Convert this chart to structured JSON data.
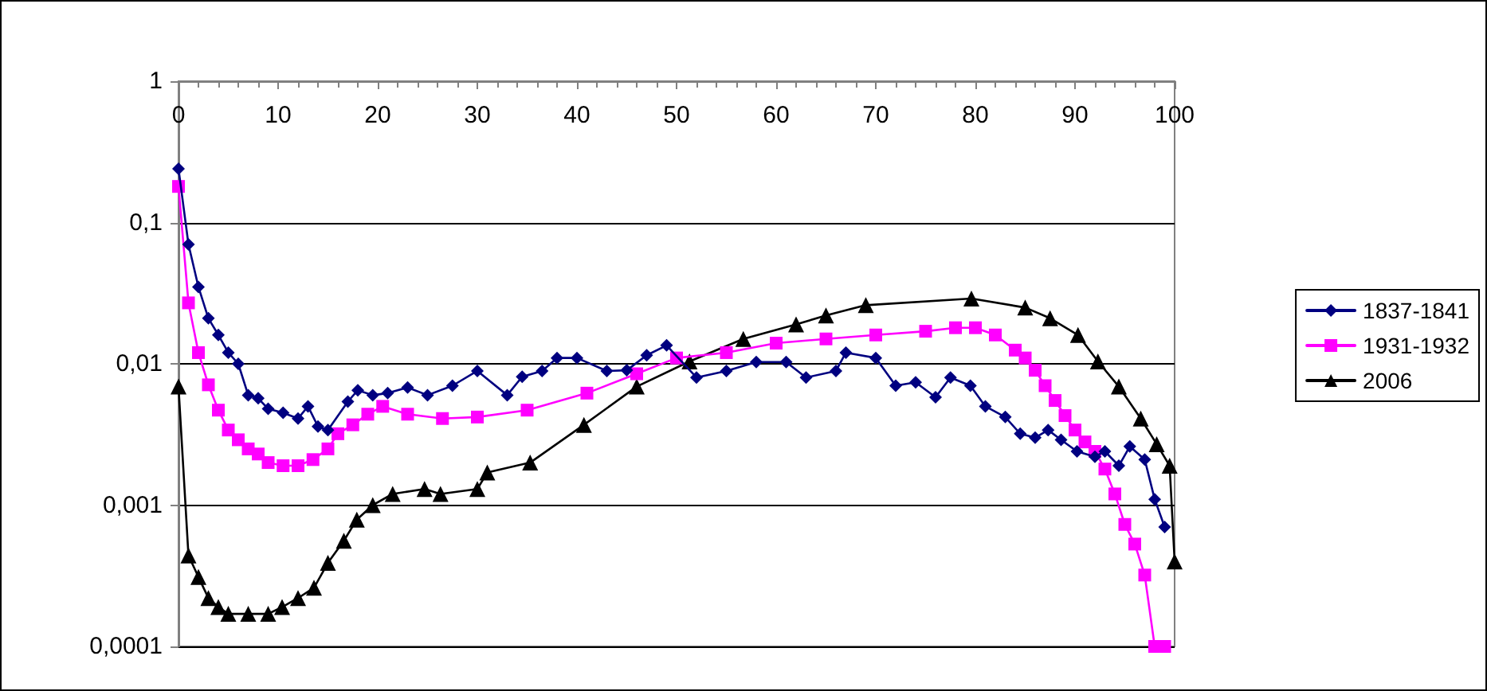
{
  "chart_data": {
    "type": "line",
    "log": "y",
    "grid": "y",
    "legend": "right",
    "xlim": [
      0,
      100
    ],
    "xticks": [
      0,
      10,
      20,
      30,
      40,
      50,
      60,
      70,
      80,
      90,
      100
    ],
    "ylim": [
      0.0001,
      1
    ],
    "yticks": [
      {
        "value": 0.0001,
        "label": "0,0001"
      },
      {
        "value": 0.001,
        "label": "0,001"
      },
      {
        "value": 0.01,
        "label": "0,01"
      },
      {
        "value": 0.1,
        "label": "0,1"
      },
      {
        "value": 1,
        "label": "1"
      }
    ],
    "series": [
      {
        "name": "1837-1841",
        "color": "#000080",
        "marker": "diamond",
        "x": [
          0,
          1,
          2,
          3,
          4,
          5,
          6,
          7,
          8,
          9,
          10.5,
          12,
          13,
          14,
          15,
          17,
          18,
          19.5,
          21,
          23,
          25,
          27.5,
          30,
          33,
          34.5,
          36.5,
          38,
          40,
          43,
          45,
          47,
          49,
          52,
          55,
          58,
          61,
          63,
          66,
          67,
          70,
          72,
          74,
          76,
          77.5,
          79.5,
          81,
          83,
          84.5,
          86,
          87.3,
          88.6,
          90.2,
          92,
          93,
          94.4,
          95.5,
          97,
          98,
          99
        ],
        "values": [
          0.24,
          0.07,
          0.035,
          0.021,
          0.016,
          0.012,
          0.01,
          0.006,
          0.0057,
          0.0048,
          0.0045,
          0.0041,
          0.005,
          0.0036,
          0.0034,
          0.0054,
          0.0065,
          0.006,
          0.0062,
          0.0068,
          0.006,
          0.007,
          0.0089,
          0.006,
          0.0081,
          0.0089,
          0.011,
          0.011,
          0.0089,
          0.009,
          0.0115,
          0.0135,
          0.008,
          0.0089,
          0.0103,
          0.0103,
          0.008,
          0.0089,
          0.012,
          0.011,
          0.007,
          0.0074,
          0.0058,
          0.008,
          0.007,
          0.005,
          0.0042,
          0.0032,
          0.003,
          0.0034,
          0.0029,
          0.0024,
          0.0022,
          0.0024,
          0.0019,
          0.0026,
          0.0021,
          0.0011,
          0.0007
        ]
      },
      {
        "name": "1931-1932",
        "color": "#ff00ff",
        "marker": "square",
        "x": [
          0,
          1,
          2,
          3,
          4,
          5,
          6,
          7,
          8,
          9,
          10.5,
          12,
          13.5,
          15,
          16,
          17.5,
          19,
          20.5,
          23,
          26.5,
          30,
          35,
          41,
          46,
          50,
          55,
          60,
          65,
          70,
          75,
          78,
          80,
          82,
          84,
          85,
          86,
          87,
          88,
          89,
          90,
          91,
          92,
          93,
          94,
          95,
          96,
          97,
          98,
          99
        ],
        "values": [
          0.18,
          0.027,
          0.012,
          0.0071,
          0.0047,
          0.0034,
          0.0029,
          0.0025,
          0.0023,
          0.002,
          0.0019,
          0.0019,
          0.0021,
          0.0025,
          0.0032,
          0.0037,
          0.0044,
          0.005,
          0.0044,
          0.0041,
          0.0042,
          0.0047,
          0.0062,
          0.0085,
          0.011,
          0.012,
          0.014,
          0.015,
          0.016,
          0.017,
          0.018,
          0.018,
          0.016,
          0.0125,
          0.011,
          0.009,
          0.007,
          0.0055,
          0.0043,
          0.0034,
          0.0028,
          0.0024,
          0.0018,
          0.0012,
          0.00073,
          0.00053,
          0.00032,
          0.0001,
          0.0001
        ]
      },
      {
        "name": "2006",
        "color": "#000000",
        "marker": "triangle",
        "x": [
          0,
          1,
          2,
          3,
          4,
          5,
          7,
          9,
          10.4,
          12,
          13.6,
          15,
          16.6,
          17.9,
          19.5,
          21.5,
          24.7,
          26.3,
          30,
          31,
          35.3,
          40.7,
          46,
          51.3,
          56.7,
          62,
          65,
          69,
          79.6,
          85,
          87.5,
          90.3,
          92.3,
          94.4,
          96.6,
          98.2,
          99.5,
          100
        ],
        "values": [
          0.0069,
          0.00044,
          0.00031,
          0.00022,
          0.00019,
          0.00017,
          0.00017,
          0.00017,
          0.00019,
          0.00022,
          0.00026,
          0.00039,
          0.00056,
          0.00079,
          0.001,
          0.0012,
          0.0013,
          0.0012,
          0.0013,
          0.0017,
          0.002,
          0.0037,
          0.0069,
          0.0104,
          0.015,
          0.019,
          0.022,
          0.026,
          0.029,
          0.025,
          0.021,
          0.016,
          0.0104,
          0.0069,
          0.0041,
          0.0027,
          0.0019,
          0.0004
        ]
      }
    ]
  }
}
